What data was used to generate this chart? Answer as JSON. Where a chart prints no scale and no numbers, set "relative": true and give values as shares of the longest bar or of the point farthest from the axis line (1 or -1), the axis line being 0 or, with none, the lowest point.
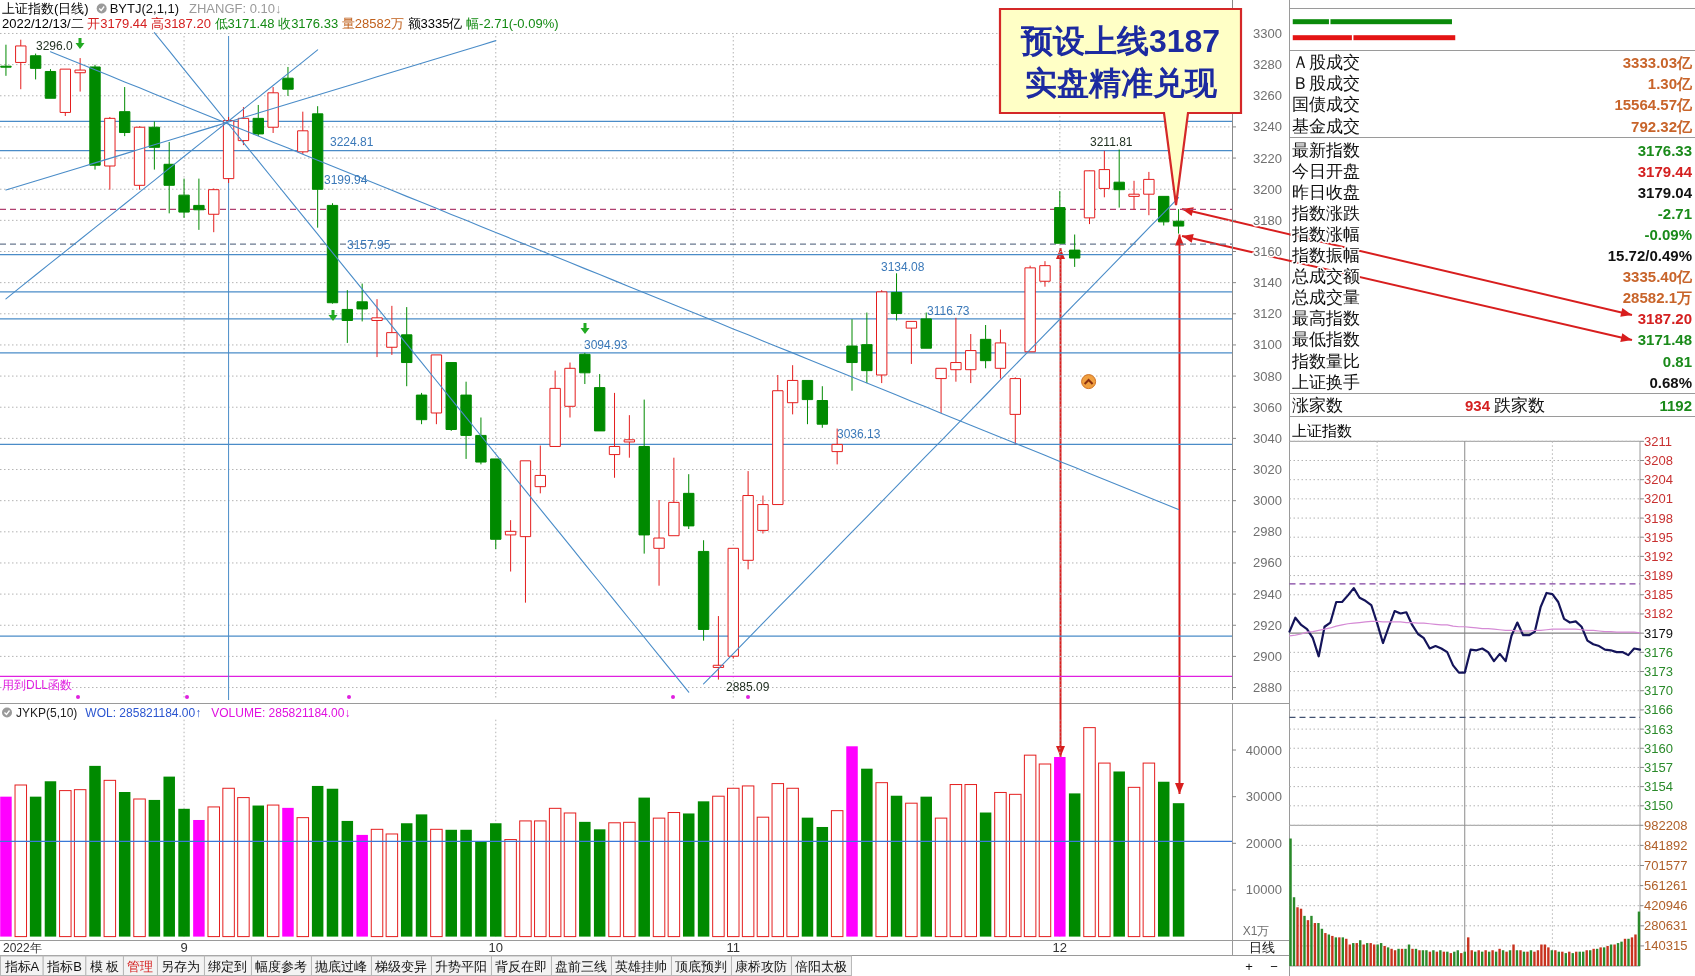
{
  "chart_data": [
    {
      "type": "candlestick",
      "title": "上证指数(日线)",
      "subtitle": "2022/12/13/二 开3179.44 高3187.20 低3171.48 收3176.33 量28582万 额3335亿 幅-2.71(-0.09%)",
      "annotations": [
        "BYTJ(2,1,1)",
        "ZHANGF: 0.10↓",
        "3296.0",
        "3224.81",
        "3199.94",
        "3157.95",
        "3094.93",
        "3036.13",
        "3134.08",
        "3116.73",
        "3211.81",
        "2885.09"
      ],
      "categories": [
        null,
        null,
        null,
        null,
        null,
        null,
        null,
        null,
        null,
        null,
        null,
        null,
        "9",
        null,
        null,
        null,
        null,
        null,
        null,
        null,
        null,
        null,
        null,
        null,
        null,
        null,
        null,
        null,
        null,
        null,
        null,
        null,
        null,
        "10",
        null,
        null,
        null,
        null,
        null,
        null,
        null,
        null,
        null,
        null,
        null,
        null,
        null,
        null,
        null,
        "11",
        null,
        null,
        null,
        null,
        null,
        null,
        null,
        null,
        null,
        null,
        null,
        null,
        null,
        null,
        null,
        null,
        null,
        null,
        null,
        null,
        null,
        "12",
        null,
        null,
        null,
        null,
        null,
        null,
        null,
        null
      ],
      "ohlc": [
        [
          3279.0,
          3292.8,
          3272.8,
          3278.5
        ],
        [
          3281.4,
          3296.0,
          3264.2,
          3292.0
        ],
        [
          3285.7,
          3287.1,
          3270.5,
          3277.6
        ],
        [
          3275.6,
          3277.1,
          3258.4,
          3258.4
        ],
        [
          3249.3,
          3277.1,
          3247.0,
          3277.1
        ],
        [
          3274.8,
          3284.2,
          3262.7,
          3276.5
        ],
        [
          3278.5,
          3279.9,
          3212.6,
          3215.4
        ],
        [
          3214.9,
          3246.4,
          3199.7,
          3245.5
        ],
        [
          3249.8,
          3265.6,
          3234.1,
          3236.4
        ],
        [
          3202.5,
          3240.4,
          3199.7,
          3239.8
        ],
        [
          3239.8,
          3243.5,
          3212.6,
          3226.9
        ],
        [
          3216.0,
          3230.3,
          3184.5,
          3202.5
        ],
        [
          3196.2,
          3206.8,
          3181.6,
          3185.3
        ],
        [
          3189.6,
          3206.8,
          3173.9,
          3186.8
        ],
        [
          3183.9,
          3200.5,
          3172.4,
          3199.7
        ],
        [
          3206.8,
          3246.4,
          3204.0,
          3244.1
        ],
        [
          3231.2,
          3252.7,
          3228.3,
          3245.5
        ],
        [
          3245.5,
          3254.1,
          3234.1,
          3235.5
        ],
        [
          3239.8,
          3265.6,
          3236.1,
          3261.9
        ],
        [
          3271.3,
          3278.5,
          3259.9,
          3264.2
        ],
        [
          3224.0,
          3249.8,
          3222.6,
          3237.5
        ],
        [
          3248.4,
          3253.3,
          3175.3,
          3199.94
        ],
        [
          3189.6,
          3191.0,
          3126.5,
          3127.1
        ],
        [
          3122.8,
          3135.2,
          3101.3,
          3115.7
        ],
        [
          3127.7,
          3139.4,
          3115.1,
          3123.1
        ],
        [
          3115.7,
          3129.4,
          3092.2,
          3117.4
        ],
        [
          3098.5,
          3125.1,
          3093.6,
          3107.9
        ],
        [
          3106.5,
          3124.3,
          3073.5,
          3088.7
        ],
        [
          3067.8,
          3069.2,
          3049.1,
          3052.0
        ],
        [
          3056.3,
          3093.6,
          3049.1,
          3093.6
        ],
        [
          3088.7,
          3088.7,
          3044.8,
          3045.7
        ],
        [
          3067.8,
          3076.4,
          3026.8,
          3041.9
        ],
        [
          3041.9,
          3053.4,
          3023.3,
          3024.8
        ],
        [
          3026.8,
          3026.8,
          2968.9,
          2975.2
        ],
        [
          2978.0,
          2987.5,
          2954.5,
          2980.3
        ],
        [
          2976.9,
          3025.6,
          2934.5,
          3025.6
        ],
        [
          3009.0,
          3035.4,
          3004.7,
          3016.2
        ],
        [
          3034.8,
          3083.5,
          3034.8,
          3072.1
        ],
        [
          3060.6,
          3088.7,
          3053.4,
          3085.0
        ],
        [
          3094.0,
          3094.93,
          3074.9,
          3082.1
        ],
        [
          3072.6,
          3081.3,
          3044.8,
          3044.8
        ],
        [
          3029.6,
          3069.2,
          3014.7,
          3034.8
        ],
        [
          3037.7,
          3054.9,
          3027.6,
          3039.1
        ],
        [
          3034.8,
          3064.9,
          2966.0,
          2978.0
        ],
        [
          2969.4,
          3000.4,
          2945.4,
          2976.0
        ],
        [
          2977.5,
          3027.6,
          2977.5,
          2998.9
        ],
        [
          3004.7,
          3017.0,
          2981.8,
          2983.8
        ],
        [
          2967.4,
          2974.6,
          2910.1,
          2917.3
        ],
        [
          2892.9,
          2925.9,
          2885.09,
          2894.3
        ],
        [
          2900.1,
          2969.4,
          2898.6,
          2969.4
        ],
        [
          2961.7,
          3019.0,
          2955.9,
          3003.3
        ],
        [
          2980.9,
          3003.3,
          2978.9,
          2997.5
        ],
        [
          2997.5,
          3080.7,
          2997.5,
          3070.6
        ],
        [
          3062.9,
          3087.0,
          3055.4,
          3077.2
        ],
        [
          3077.2,
          3077.2,
          3049.1,
          3064.9
        ],
        [
          3064.3,
          3073.5,
          3046.8,
          3049.1
        ],
        [
          3031.5,
          3046.3,
          3023.3,
          3036.13
        ],
        [
          3099.3,
          3116.5,
          3070.6,
          3088.7
        ],
        [
          3100.2,
          3120.8,
          3075.5,
          3083.5
        ],
        [
          3080.7,
          3135.2,
          3075.5,
          3134.08
        ],
        [
          3133.7,
          3146.0,
          3115.7,
          3120.2
        ],
        [
          3110.8,
          3115.1,
          3087.8,
          3115.1
        ],
        [
          3116.73,
          3120.8,
          3097.9,
          3097.9
        ],
        [
          3078.4,
          3085.0,
          3056.3,
          3085.0
        ],
        [
          3084.1,
          3117.4,
          3076.4,
          3088.7
        ],
        [
          3084.1,
          3107.0,
          3075.5,
          3096.4
        ],
        [
          3103.6,
          3112.8,
          3085.0,
          3089.9
        ],
        [
          3085.0,
          3109.9,
          3078.4,
          3101.3
        ],
        [
          3055.4,
          3079.2,
          3036.2,
          3078.4
        ],
        [
          3095.6,
          3150.9,
          3095.6,
          3149.5
        ],
        [
          3140.9,
          3153.8,
          3137.4,
          3150.9
        ],
        [
          3188.2,
          3198.8,
          3165.3,
          3165.3
        ],
        [
          3160.9,
          3170.9,
          3150.1,
          3155.8
        ],
        [
          3181.6,
          3212.0,
          3177.6,
          3211.81
        ],
        [
          3200.5,
          3224.6,
          3194.8,
          3212.6
        ],
        [
          3204.5,
          3225.5,
          3188.2,
          3199.7
        ],
        [
          3195.4,
          3205.4,
          3186.8,
          3196.8
        ],
        [
          3196.8,
          3211.1,
          3183.3,
          3206.3
        ],
        [
          3195.4,
          3195.4,
          3176.7,
          3179.04
        ],
        [
          3179.44,
          3187.2,
          3171.48,
          3176.33
        ]
      ],
      "colors": [
        "#008a00",
        "#e41e1e",
        "#008a00",
        "#008a00",
        "#e41e1e",
        "#e41e1e",
        "#008a00",
        "#e41e1e",
        "#008a00",
        "#e41e1e",
        "#008a00",
        "#008a00",
        "#008a00",
        "#008a00",
        "#e41e1e",
        "#e41e1e",
        "#e41e1e",
        "#008a00",
        "#e41e1e",
        "#008a00",
        "#e41e1e",
        "#008a00",
        "#008a00",
        "#008a00",
        "#008a00",
        "#e41e1e",
        "#e41e1e",
        "#008a00",
        "#008a00",
        "#e41e1e",
        "#008a00",
        "#008a00",
        "#008a00",
        "#008a00",
        "#e41e1e",
        "#e41e1e",
        "#e41e1e",
        "#e41e1e",
        "#e41e1e",
        "#008a00",
        "#008a00",
        "#e41e1e",
        "#e41e1e",
        "#008a00",
        "#e41e1e",
        "#e41e1e",
        "#008a00",
        "#008a00",
        "#e41e1e",
        "#e41e1e",
        "#e41e1e",
        "#e41e1e",
        "#e41e1e",
        "#e41e1e",
        "#008a00",
        "#008a00",
        "#e41e1e",
        "#008a00",
        "#008a00",
        "#e41e1e",
        "#008a00",
        "#e41e1e",
        "#008a00",
        "#e41e1e",
        "#e41e1e",
        "#e41e1e",
        "#008a00",
        "#e41e1e",
        "#e41e1e",
        "#e41e1e",
        "#e41e1e",
        "#008a00",
        "#008a00",
        "#e41e1e",
        "#e41e1e",
        "#008a00",
        "#e41e1e",
        "#e41e1e",
        "#008a00",
        "#008a00"
      ],
      "series": [
        {
          "type": "line",
          "color": "#4a8cc8",
          "values": [
            null,
            null,
            null,
            null,
            null,
            null,
            null,
            null,
            null,
            null,
            3300.5,
            3288.8,
            3277.0,
            3265.2,
            3253.5,
            3241.7,
            3229.9,
            3218.2,
            3206.4,
            3194.6,
            3182.9,
            3171.1,
            3159.3,
            3147.6,
            3135.8,
            3124.1,
            3112.3,
            3100.5,
            3088.8,
            3077.0,
            3065.2,
            3053.5,
            3041.7,
            3029.9,
            3018.2,
            3006.4,
            2994.6,
            2982.9,
            2971.1,
            2959.3,
            2947.6,
            2935.8,
            2924.0,
            2912.3,
            2900.5,
            2888.8,
            2877.0,
            null,
            null,
            null,
            null,
            null,
            null,
            null,
            null,
            null,
            null,
            null,
            null,
            null,
            null,
            null,
            null,
            null,
            null,
            null,
            null,
            null,
            null,
            null,
            null,
            null,
            null,
            null,
            null,
            null,
            null,
            null,
            null,
            null
          ]
        },
        {
          "type": "line",
          "color": "#4a8cc8",
          "values": [
            3129.6,
            3137.3,
            3144.9,
            3152.5,
            3160.1,
            3167.7,
            3175.3,
            3182.9,
            3190.5,
            3198.1,
            3205.7,
            3213.4,
            3221.0,
            3228.6,
            3236.2,
            3243.8,
            3251.4,
            3259.0,
            3266.6,
            3274.2,
            3281.8,
            3289.5,
            null,
            null,
            null,
            null,
            null,
            null,
            null,
            null,
            null,
            null,
            null,
            null,
            null,
            null,
            null,
            null,
            null,
            null,
            null,
            null,
            null,
            null,
            null,
            null,
            null,
            null,
            null,
            null,
            null,
            null,
            null,
            null,
            null,
            null,
            null,
            null,
            null,
            null,
            null,
            null,
            null,
            null,
            null,
            null,
            null,
            null,
            null,
            null,
            null,
            null,
            null,
            null,
            null,
            null,
            null,
            null,
            null,
            null
          ]
        },
        {
          "type": "line",
          "color": "#4a8cc8",
          "values": [
            3199.5,
            3202.4,
            3205.3,
            3208.2,
            3211.1,
            3214.0,
            3216.9,
            3219.8,
            3222.7,
            3225.6,
            3228.5,
            3231.4,
            3234.3,
            3237.3,
            3240.2,
            3243.1,
            3246.0,
            3248.9,
            3251.8,
            3254.7,
            3257.6,
            3260.5,
            3263.4,
            3266.3,
            3269.2,
            3272.2,
            3275.1,
            3278.0,
            3280.9,
            3283.8,
            3286.7,
            3289.6,
            3292.5,
            3295.4,
            null,
            null,
            null,
            null,
            null,
            null,
            null,
            null,
            null,
            null,
            null,
            null,
            null,
            null,
            null,
            null,
            null,
            null,
            null,
            null,
            null,
            null,
            null,
            null,
            null,
            null,
            null,
            null,
            null,
            null,
            null,
            null,
            null,
            null,
            null,
            null,
            null,
            null,
            null,
            null,
            null,
            null,
            null,
            null,
            null,
            null
          ]
        },
        {
          "type": "line",
          "color": "#4a8cc8",
          "values": [
            null,
            null,
            null,
            3288.3,
            3284.4,
            3280.5,
            3276.7,
            3272.8,
            3268.9,
            3265.1,
            3261.2,
            3257.3,
            3253.5,
            3249.6,
            3245.7,
            3241.8,
            3238.0,
            3234.1,
            3230.2,
            3226.4,
            3222.5,
            3218.6,
            3214.8,
            3210.9,
            3207.0,
            3203.2,
            3199.3,
            3195.4,
            3191.6,
            3187.7,
            3183.8,
            3180.0,
            3176.1,
            3172.2,
            3168.4,
            3164.5,
            3160.6,
            3156.8,
            3152.9,
            3149.0,
            3145.2,
            3141.3,
            3137.4,
            3133.5,
            3129.7,
            3125.8,
            3121.9,
            3118.1,
            3114.2,
            3110.3,
            3106.5,
            3102.6,
            3098.7,
            3094.9,
            3091.0,
            3087.1,
            3083.3,
            3079.4,
            3075.5,
            3071.7,
            3067.8,
            3063.9,
            3060.1,
            3056.2,
            3052.3,
            3048.4,
            3044.6,
            3040.7,
            3036.8,
            3033.0,
            3029.1,
            3025.2,
            3021.4,
            3017.5,
            3013.6,
            3009.8,
            3005.9,
            3002.0,
            2998.2,
            2994.3
          ]
        },
        {
          "type": "line",
          "color": "#4a8cc8",
          "values": [
            null,
            null,
            null,
            null,
            null,
            null,
            null,
            null,
            null,
            null,
            null,
            null,
            null,
            null,
            null,
            null,
            null,
            null,
            null,
            null,
            null,
            null,
            null,
            null,
            null,
            null,
            null,
            null,
            null,
            null,
            null,
            null,
            null,
            null,
            null,
            null,
            null,
            null,
            null,
            null,
            null,
            null,
            null,
            null,
            null,
            null,
            null,
            2882.3,
            2892.0,
            2901.8,
            2911.6,
            2921.3,
            2931.1,
            2940.8,
            2950.6,
            2960.4,
            2970.1,
            2979.9,
            2989.6,
            2999.4,
            3009.2,
            3018.9,
            3028.7,
            3038.4,
            3048.2,
            3058.0,
            3067.7,
            3077.5,
            3087.2,
            3097.0,
            3106.8,
            3116.5,
            3126.3,
            3136.0,
            3145.8,
            3155.6,
            3165.3,
            3175.1,
            3184.8,
            3194.6
          ]
        }
      ],
      "ylim": [
        2872,
        3321.5
      ],
      "yticks": [
        2880,
        2900,
        2920,
        2940,
        2960,
        2980,
        3000,
        3020,
        3040,
        3060,
        3080,
        3100,
        3120,
        3140,
        3160,
        3180,
        3200,
        3220,
        3240,
        3260,
        3280,
        3300
      ],
      "tick_labels": "y",
      "grid": true,
      "ref_lines": [
        {
          "axis": "y",
          "value": 3243.5,
          "color": "#4a8cc8"
        },
        {
          "axis": "y",
          "value": 3224.81,
          "color": "#4a8cc8"
        },
        {
          "axis": "y",
          "value": 3187,
          "color": "#b04070",
          "line_style": "dashed"
        },
        {
          "axis": "y",
          "value": 3164.7,
          "color": "#6a7890",
          "line_style": "dashed"
        },
        {
          "axis": "y",
          "value": 3157.95,
          "color": "#4a8cc8"
        },
        {
          "axis": "y",
          "value": 3134.08,
          "color": "#4a8cc8"
        },
        {
          "axis": "y",
          "value": 3116.73,
          "color": "#4a8cc8"
        },
        {
          "axis": "y",
          "value": 3094.93,
          "color": "#4a8cc8"
        },
        {
          "axis": "y",
          "value": 3036.13,
          "color": "#4a8cc8"
        },
        {
          "axis": "y",
          "value": 2913.0,
          "color": "#4a8cc8"
        },
        {
          "axis": "y",
          "value": 2887.2,
          "color": "#e020e0",
          "label": "用到DLL函数"
        }
      ]
    },
    {
      "type": "other",
      "title": "预设上线3187",
      "subtitle": "实盘精准兑现"
    },
    {
      "type": "bar",
      "title": "JYKP(5,10)",
      "ylabel": "X1万",
      "annotations": [
        "WOL: 285821184.00↑",
        "VOLUME: 285821184.00↓",
        "2022年"
      ],
      "categories": [
        null,
        null,
        null,
        null,
        null,
        null,
        null,
        null,
        null,
        null,
        null,
        null,
        "9",
        null,
        null,
        null,
        null,
        null,
        null,
        null,
        null,
        null,
        null,
        null,
        null,
        null,
        null,
        null,
        null,
        null,
        null,
        null,
        null,
        "10",
        null,
        null,
        null,
        null,
        null,
        null,
        null,
        null,
        null,
        null,
        null,
        null,
        null,
        null,
        null,
        "11",
        null,
        null,
        null,
        null,
        null,
        null,
        null,
        null,
        null,
        null,
        null,
        null,
        null,
        null,
        null,
        null,
        null,
        null,
        null,
        null,
        null,
        "12",
        null,
        null,
        null,
        null,
        null,
        null,
        null,
        null
      ],
      "values": [
        30000,
        32500,
        30000,
        33300,
        31300,
        31500,
        36600,
        33500,
        31000,
        29500,
        29300,
        34300,
        27400,
        25000,
        27800,
        31800,
        29800,
        28100,
        28200,
        27600,
        25500,
        32300,
        31700,
        24800,
        21800,
        23000,
        22000,
        24300,
        26200,
        23000,
        22900,
        22900,
        20400,
        24300,
        20800,
        24800,
        24800,
        27500,
        26500,
        24600,
        23000,
        24400,
        24500,
        29800,
        25400,
        26600,
        26400,
        29000,
        30100,
        31800,
        32300,
        25600,
        32800,
        31800,
        25500,
        23500,
        27000,
        40800,
        36000,
        33000,
        30200,
        28600,
        30000,
        25400,
        32600,
        32600,
        26600,
        30900,
        30500,
        38900,
        37000,
        38500,
        30700,
        44800,
        37200,
        35400,
        32000,
        37200,
        33200,
        28600
      ],
      "colors": [
        "#ff00ff",
        "#e41e1e",
        "#008a00",
        "#008a00",
        "#e41e1e",
        "#e41e1e",
        "#008a00",
        "#e41e1e",
        "#008a00",
        "#e41e1e",
        "#008a00",
        "#008a00",
        "#008a00",
        "#ff00ff",
        "#e41e1e",
        "#e41e1e",
        "#e41e1e",
        "#008a00",
        "#e41e1e",
        "#ff00ff",
        "#e41e1e",
        "#008a00",
        "#008a00",
        "#008a00",
        "#ff00ff",
        "#e41e1e",
        "#e41e1e",
        "#008a00",
        "#008a00",
        "#e41e1e",
        "#008a00",
        "#008a00",
        "#008a00",
        "#008a00",
        "#e41e1e",
        "#e41e1e",
        "#e41e1e",
        "#e41e1e",
        "#e41e1e",
        "#008a00",
        "#008a00",
        "#e41e1e",
        "#e41e1e",
        "#008a00",
        "#e41e1e",
        "#e41e1e",
        "#008a00",
        "#008a00",
        "#e41e1e",
        "#e41e1e",
        "#e41e1e",
        "#e41e1e",
        "#e41e1e",
        "#e41e1e",
        "#008a00",
        "#008a00",
        "#e41e1e",
        "#ff00ff",
        "#008a00",
        "#e41e1e",
        "#008a00",
        "#e41e1e",
        "#008a00",
        "#e41e1e",
        "#e41e1e",
        "#e41e1e",
        "#008a00",
        "#e41e1e",
        "#e41e1e",
        "#e41e1e",
        "#e41e1e",
        "#ff00ff",
        "#008a00",
        "#e41e1e",
        "#e41e1e",
        "#008a00",
        "#e41e1e",
        "#e41e1e",
        "#008a00",
        "#008a00"
      ],
      "ylim": [
        0,
        46500
      ],
      "yticks": [
        10000,
        20000,
        30000,
        40000
      ],
      "grid": "x",
      "ref_lines": [
        {
          "axis": "y",
          "value": 20400,
          "color": "#3a78d8"
        }
      ]
    },
    {
      "type": "other",
      "categories": [
        "指标A",
        "指标B",
        "模 板",
        "管理",
        "另存为",
        "绑定到",
        "幅度参考",
        "抛底过峰",
        "梯级变异",
        "升势平阳",
        "背反在即",
        "盘前三线",
        "英雄挂帅",
        "顶底预判",
        "康桥攻防",
        "倍阳太极"
      ],
      "annotations": [
        "日线",
        "+",
        "−"
      ]
    },
    {
      "type": "bar",
      "orientation": "horizontal",
      "stacked": true,
      "relative": true,
      "categories": [
        null,
        null
      ],
      "series": [
        {
          "values": [
            0.23,
            0.37
          ],
          "colors": [
            "#0a8a0a",
            "#e41414"
          ]
        },
        {
          "values": [
            0.75,
            0.63
          ],
          "colors": [
            "#0a8a0a",
            "#e41414"
          ]
        }
      ]
    },
    {
      "type": "other",
      "categories": [
        "Ａ股成交",
        "Ｂ股成交",
        "国债成交",
        "基金成交"
      ],
      "value_labels": [
        "3333.03亿",
        "1.30亿",
        "15564.57亿",
        "792.32亿"
      ],
      "colors": [
        "#c8642a",
        "#c8642a",
        "#c8642a",
        "#c8642a"
      ]
    },
    {
      "type": "other",
      "categories": [
        "最新指数",
        "今日开盘",
        "昨日收盘",
        "指数涨跌",
        "指数涨幅",
        "指数振幅",
        "总成交额",
        "总成交量",
        "最高指数",
        "最低指数",
        "指数量比",
        "上证换手"
      ],
      "value_labels": [
        "3176.33",
        "3179.44",
        "3179.04",
        "-2.71",
        "-0.09%",
        "15.72/0.49%",
        "3335.40亿",
        "28582.1万",
        "3187.20",
        "3171.48",
        "0.81",
        "0.68%"
      ],
      "colors": [
        "#1a8a1a",
        "#d42020",
        "#111111",
        "#1a8a1a",
        "#1a8a1a",
        "#111111",
        "#c8642a",
        "#c8642a",
        "#d42020",
        "#1a8a1a",
        "#1a8a1a",
        "#111111"
      ]
    },
    {
      "type": "other",
      "categories": [
        "涨家数",
        "跌家数"
      ],
      "value_labels": [
        "934",
        "1192"
      ],
      "colors": [
        "#d42020",
        "#1a8a1a"
      ]
    },
    {
      "type": "line",
      "title": "上证指数",
      "categories": [
        null,
        null,
        null,
        null,
        null,
        null,
        null,
        null,
        null,
        null,
        null,
        null,
        null,
        null,
        null,
        null,
        null,
        null,
        null,
        null,
        null,
        null,
        null,
        null,
        null,
        null,
        null,
        null,
        null,
        null,
        null,
        null,
        null,
        null,
        null,
        null,
        null,
        null,
        null,
        null,
        null,
        null,
        null,
        null,
        null,
        null,
        null,
        null,
        null,
        null,
        null,
        null,
        null,
        null,
        null,
        null,
        null,
        null,
        null,
        null,
        null
      ],
      "series": [
        {
          "color": "#14145a",
          "values": [
            3179.3,
            3181.6,
            3180.4,
            3179.7,
            3178.2,
            3175.2,
            3180.1,
            3180.8,
            3184.2,
            3184.2,
            3185.3,
            3186.5,
            3184.9,
            3184.4,
            3183.7,
            3180.7,
            3177.4,
            3180.1,
            3182.7,
            3182.3,
            3182.5,
            3180.4,
            3178.9,
            3178.2,
            3176.5,
            3176.9,
            3176.5,
            3175.9,
            3173.7,
            3172.5,
            3172.5,
            3176.3,
            3176.2,
            3176.5,
            3175.9,
            3174.4,
            3175.6,
            3174.4,
            3178.6,
            3180.8,
            3178.7,
            3178.7,
            3179.3,
            3183.4,
            3185.7,
            3185.5,
            3184.2,
            3181.4,
            3180.8,
            3181.0,
            3180.1,
            3177.8,
            3177.2,
            3176.9,
            3176.3,
            3176.2,
            3175.9,
            3175.9,
            3175.4,
            3176.5,
            3176.3
          ]
        },
        {
          "color": "#d58ad5",
          "values": [
            3178.6,
            3178.7,
            3178.9,
            3179.2,
            3179.3,
            3179.5,
            3179.7,
            3179.9,
            3180.2,
            3180.4,
            3180.6,
            3180.7,
            3180.8,
            3180.9,
            3181.0,
            3181.0,
            3180.9,
            3180.9,
            3180.9,
            3180.9,
            3180.8,
            3180.8,
            3180.7,
            3180.7,
            3180.6,
            3180.5,
            3180.4,
            3180.4,
            3180.2,
            3180.1,
            3180.1,
            3180.0,
            3179.9,
            3179.8,
            3179.8,
            3179.7,
            3179.6,
            3179.5,
            3179.5,
            3179.4,
            3179.4,
            3179.4,
            3179.5,
            3179.5,
            3179.6,
            3179.7,
            3179.7,
            3179.7,
            3179.7,
            3179.7,
            3179.6,
            3179.5,
            3179.5,
            3179.4,
            3179.3,
            3179.3,
            3179.2,
            3179.2,
            3179.2,
            3179.2,
            3179.1
          ]
        }
      ],
      "ylim": [
        3147.2,
        3210.83
      ],
      "yticks": [
        {
          "value": 3210.83,
          "label": "3211"
        },
        {
          "value": 3207.65,
          "label": "3208"
        },
        {
          "value": 3204.47,
          "label": "3204"
        },
        {
          "value": 3201.29,
          "label": "3201"
        },
        {
          "value": 3198.11,
          "label": "3198"
        },
        {
          "value": 3194.94,
          "label": "3195"
        },
        {
          "value": 3191.76,
          "label": "3192"
        },
        {
          "value": 3188.58,
          "label": "3189"
        },
        {
          "value": 3185.4,
          "label": "3185"
        },
        {
          "value": 3182.22,
          "label": "3182"
        },
        {
          "value": 3179.04,
          "label": "3179"
        },
        {
          "value": 3175.86,
          "label": "3176"
        },
        {
          "value": 3172.68,
          "label": "3173"
        },
        {
          "value": 3169.5,
          "label": "3170"
        },
        {
          "value": 3166.32,
          "label": "3166"
        },
        {
          "value": 3163.14,
          "label": "3163"
        },
        {
          "value": 3159.97,
          "label": "3160"
        },
        {
          "value": 3156.79,
          "label": "3157"
        },
        {
          "value": 3153.61,
          "label": "3154"
        },
        {
          "value": 3150.43,
          "label": "3150"
        }
      ],
      "tick_labels": "y",
      "grid": true,
      "ref_lines": [
        {
          "axis": "y",
          "value": 3179.04,
          "color": "#808080"
        },
        {
          "axis": "y",
          "value": 3187.2,
          "color": "#8040a0",
          "line_style": "dashed"
        },
        {
          "axis": "y",
          "value": 3165.1,
          "color": "#405070",
          "line_style": "dashed"
        }
      ]
    },
    {
      "type": "bar",
      "categories": [
        null,
        null,
        null,
        null,
        null,
        null,
        null,
        null,
        null,
        null,
        null,
        null,
        null,
        null,
        null,
        null,
        null,
        null,
        null,
        null,
        null,
        null,
        null,
        null,
        null,
        null,
        null,
        null,
        null,
        null,
        null,
        null,
        null,
        null,
        null,
        null,
        null,
        null,
        null,
        null,
        null,
        null,
        null,
        null,
        null,
        null,
        null,
        null,
        null,
        null,
        null,
        null,
        null,
        null,
        null,
        null,
        null,
        null,
        null,
        null,
        null,
        null,
        null,
        null,
        null,
        null,
        null,
        null,
        null,
        null,
        null,
        null,
        null,
        null,
        null,
        null,
        null,
        null,
        null,
        null,
        null,
        null,
        null,
        null,
        null,
        null,
        null,
        null,
        null,
        null,
        null,
        null,
        null,
        null,
        null,
        null,
        null,
        null,
        null,
        null,
        null
      ],
      "values": [
        890000,
        480000,
        410000,
        400000,
        350000,
        320000,
        350000,
        300000,
        300000,
        260000,
        230000,
        220000,
        210000,
        200000,
        200000,
        200000,
        190000,
        150000,
        160000,
        160000,
        180000,
        150000,
        160000,
        160000,
        150000,
        150000,
        160000,
        140000,
        130000,
        120000,
        110000,
        120000,
        120000,
        120000,
        150000,
        120000,
        120000,
        110000,
        110000,
        110000,
        100000,
        110000,
        100000,
        110000,
        100000,
        100000,
        90000,
        100000,
        110000,
        90000,
        100000,
        200000,
        110000,
        100000,
        110000,
        100000,
        110000,
        100000,
        110000,
        100000,
        120000,
        110000,
        100000,
        110000,
        150000,
        110000,
        110000,
        100000,
        100000,
        110000,
        100000,
        110000,
        150000,
        150000,
        130000,
        110000,
        110000,
        100000,
        100000,
        90000,
        100000,
        90000,
        100000,
        100000,
        100000,
        110000,
        110000,
        120000,
        120000,
        130000,
        130000,
        140000,
        150000,
        150000,
        160000,
        170000,
        190000,
        190000,
        200000,
        220000,
        380000
      ],
      "colors": [
        "#2a8a2a",
        "#2a8a2a",
        "#c8321e",
        "#c8321e",
        "#2a8a2a",
        "#c8321e",
        "#2a8a2a",
        "#c8321e",
        "#2a8a2a",
        "#2a8a2a",
        "#c8321e",
        "#2a8a2a",
        "#c8321e",
        "#2a8a2a",
        "#c8321e",
        "#2a8a2a",
        "#c8321e",
        "#c8321e",
        "#2a8a2a",
        "#c8321e",
        "#2a8a2a",
        "#c8321e",
        "#2a8a2a",
        "#c8321e",
        "#c8321e",
        "#2a8a2a",
        "#2a8a2a",
        "#c8321e",
        "#2a8a2a",
        "#c8321e",
        "#c8321e",
        "#2a8a2a",
        "#c8321e",
        "#2a8a2a",
        "#2a8a2a",
        "#c8321e",
        "#2a8a2a",
        "#c8321e",
        "#2a8a2a",
        "#2a8a2a",
        "#c8321e",
        "#2a8a2a",
        "#c8321e",
        "#2a8a2a",
        "#c8321e",
        "#2a8a2a",
        "#c8321e",
        "#2a8a2a",
        "#2a8a2a",
        "#c8321e",
        "#2a8a2a",
        "#c8321e",
        "#c8321e",
        "#2a8a2a",
        "#c8321e",
        "#2a8a2a",
        "#c8321e",
        "#2a8a2a",
        "#c8321e",
        "#2a8a2a",
        "#c8321e",
        "#2a8a2a",
        "#c8321e",
        "#2a8a2a",
        "#c8321e",
        "#2a8a2a",
        "#c8321e",
        "#2a8a2a",
        "#c8321e",
        "#2a8a2a",
        "#c8321e",
        "#c8321e",
        "#c8321e",
        "#c8321e",
        "#c8321e",
        "#2a8a2a",
        "#c8321e",
        "#2a8a2a",
        "#c8321e",
        "#2a8a2a",
        "#c8321e",
        "#2a8a2a",
        "#c8321e",
        "#2a8a2a",
        "#2a8a2a",
        "#c8321e",
        "#2a8a2a",
        "#c8321e",
        "#2a8a2a",
        "#c8321e",
        "#2a8a2a",
        "#c8321e",
        "#2a8a2a",
        "#c8321e",
        "#2a8a2a",
        "#2a8a2a",
        "#c8321e",
        "#2a8a2a",
        "#c8321e",
        "#c8321e",
        "#2a8a2a"
      ],
      "ylim": [
        0,
        982208
      ],
      "yticks": [
        140315,
        280631,
        420946,
        561261,
        701577,
        841892,
        982208
      ],
      "tick_labels": "y",
      "grid": true
    }
  ]
}
